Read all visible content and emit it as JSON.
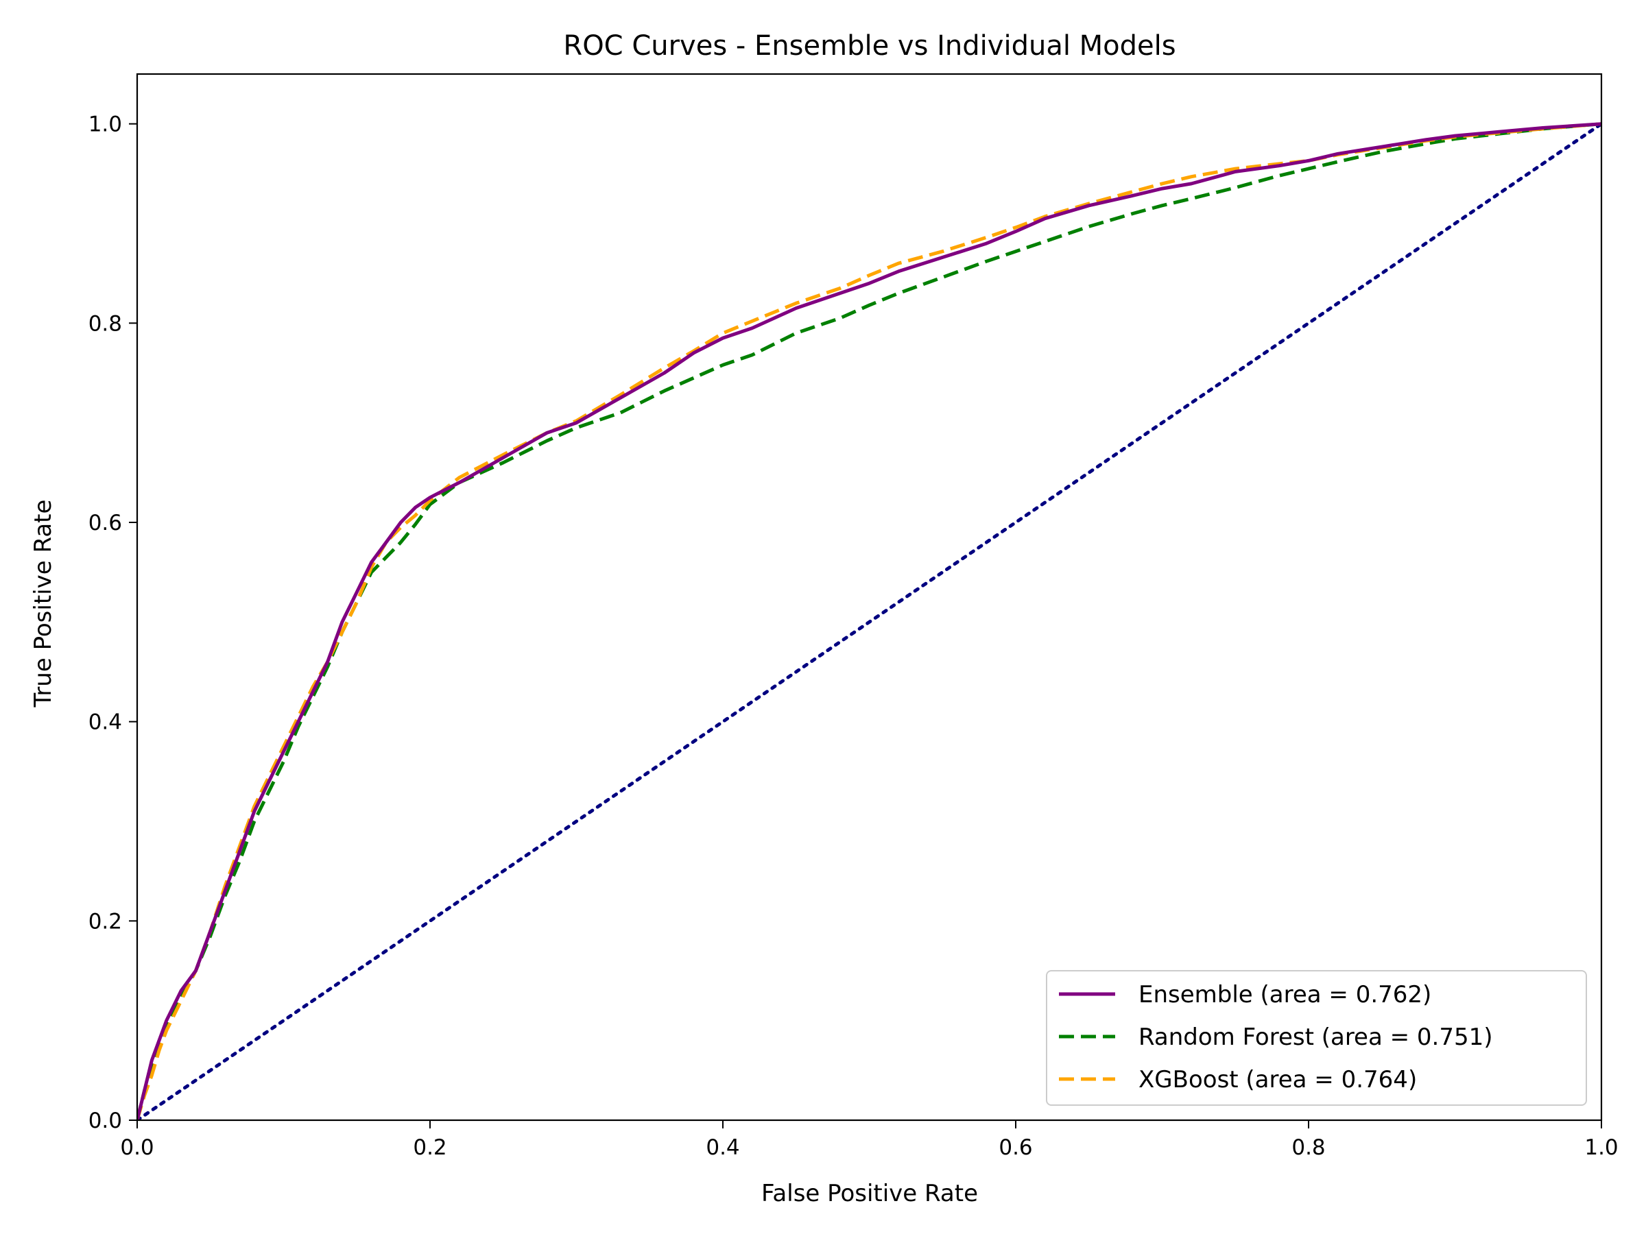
{
  "chart_data": {
    "type": "line",
    "title": "ROC Curves - Ensemble vs Individual Models",
    "xlabel": "False Positive Rate",
    "ylabel": "True Positive Rate",
    "xlim": [
      0.0,
      1.0
    ],
    "ylim": [
      0.0,
      1.05
    ],
    "x_ticks": [
      "0.0",
      "0.2",
      "0.4",
      "0.6",
      "0.8",
      "1.0"
    ],
    "y_ticks": [
      "0.0",
      "0.2",
      "0.4",
      "0.6",
      "0.8",
      "1.0"
    ],
    "grid": false,
    "legend_position": "lower-right",
    "series": [
      {
        "name": "Ensemble (area = 0.762)",
        "color": "#800080",
        "dash": "solid",
        "x": [
          0.0,
          0.005,
          0.01,
          0.015,
          0.02,
          0.03,
          0.04,
          0.05,
          0.06,
          0.07,
          0.08,
          0.09,
          0.1,
          0.11,
          0.12,
          0.13,
          0.14,
          0.15,
          0.16,
          0.17,
          0.18,
          0.19,
          0.2,
          0.22,
          0.25,
          0.28,
          0.3,
          0.33,
          0.36,
          0.38,
          0.4,
          0.42,
          0.45,
          0.48,
          0.5,
          0.52,
          0.55,
          0.58,
          0.6,
          0.62,
          0.65,
          0.68,
          0.7,
          0.72,
          0.75,
          0.78,
          0.8,
          0.82,
          0.85,
          0.88,
          0.9,
          0.93,
          0.96,
          1.0
        ],
        "y": [
          0.0,
          0.03,
          0.06,
          0.08,
          0.1,
          0.13,
          0.15,
          0.19,
          0.23,
          0.27,
          0.31,
          0.34,
          0.37,
          0.4,
          0.43,
          0.46,
          0.5,
          0.53,
          0.56,
          0.58,
          0.6,
          0.615,
          0.625,
          0.64,
          0.665,
          0.69,
          0.7,
          0.725,
          0.75,
          0.77,
          0.785,
          0.795,
          0.815,
          0.83,
          0.84,
          0.852,
          0.866,
          0.88,
          0.892,
          0.905,
          0.918,
          0.928,
          0.935,
          0.94,
          0.952,
          0.958,
          0.963,
          0.97,
          0.977,
          0.984,
          0.988,
          0.992,
          0.996,
          1.0
        ]
      },
      {
        "name": "Random Forest (area = 0.751)",
        "color": "#008000",
        "dash": "dashed",
        "x": [
          0.0,
          0.005,
          0.01,
          0.015,
          0.02,
          0.03,
          0.04,
          0.05,
          0.06,
          0.07,
          0.08,
          0.09,
          0.1,
          0.11,
          0.12,
          0.13,
          0.14,
          0.15,
          0.16,
          0.17,
          0.18,
          0.19,
          0.2,
          0.22,
          0.25,
          0.28,
          0.3,
          0.33,
          0.36,
          0.38,
          0.4,
          0.42,
          0.45,
          0.48,
          0.5,
          0.52,
          0.55,
          0.58,
          0.6,
          0.62,
          0.65,
          0.68,
          0.7,
          0.72,
          0.75,
          0.78,
          0.8,
          0.82,
          0.85,
          0.88,
          0.9,
          0.93,
          0.96,
          1.0
        ],
        "y": [
          0.0,
          0.03,
          0.055,
          0.075,
          0.095,
          0.125,
          0.15,
          0.185,
          0.225,
          0.26,
          0.3,
          0.33,
          0.36,
          0.395,
          0.425,
          0.455,
          0.49,
          0.52,
          0.55,
          0.565,
          0.58,
          0.598,
          0.618,
          0.64,
          0.66,
          0.682,
          0.695,
          0.71,
          0.732,
          0.745,
          0.758,
          0.768,
          0.79,
          0.805,
          0.818,
          0.83,
          0.846,
          0.862,
          0.872,
          0.882,
          0.897,
          0.91,
          0.918,
          0.925,
          0.936,
          0.948,
          0.955,
          0.962,
          0.972,
          0.98,
          0.985,
          0.99,
          0.995,
          1.0
        ]
      },
      {
        "name": "XGBoost (area = 0.764)",
        "color": "#FFA500",
        "dash": "dashed",
        "x": [
          0.0,
          0.005,
          0.01,
          0.015,
          0.02,
          0.03,
          0.04,
          0.05,
          0.06,
          0.07,
          0.08,
          0.09,
          0.1,
          0.11,
          0.12,
          0.13,
          0.14,
          0.15,
          0.16,
          0.17,
          0.18,
          0.19,
          0.2,
          0.22,
          0.25,
          0.28,
          0.3,
          0.33,
          0.36,
          0.38,
          0.4,
          0.42,
          0.45,
          0.48,
          0.5,
          0.52,
          0.55,
          0.58,
          0.6,
          0.62,
          0.65,
          0.68,
          0.7,
          0.72,
          0.75,
          0.78,
          0.8,
          0.82,
          0.85,
          0.88,
          0.9,
          0.93,
          0.96,
          1.0
        ],
        "y": [
          0.0,
          0.025,
          0.045,
          0.07,
          0.09,
          0.12,
          0.15,
          0.19,
          0.235,
          0.275,
          0.315,
          0.345,
          0.375,
          0.405,
          0.435,
          0.46,
          0.49,
          0.52,
          0.555,
          0.58,
          0.595,
          0.607,
          0.622,
          0.645,
          0.668,
          0.69,
          0.702,
          0.728,
          0.755,
          0.772,
          0.79,
          0.802,
          0.82,
          0.835,
          0.848,
          0.86,
          0.872,
          0.886,
          0.896,
          0.907,
          0.92,
          0.932,
          0.94,
          0.947,
          0.955,
          0.96,
          0.963,
          0.969,
          0.976,
          0.983,
          0.987,
          0.991,
          0.995,
          1.0
        ]
      },
      {
        "name": "",
        "color": "#000080",
        "dash": "dotted",
        "x": [
          0.0,
          1.0
        ],
        "y": [
          0.0,
          1.0
        ]
      }
    ]
  }
}
